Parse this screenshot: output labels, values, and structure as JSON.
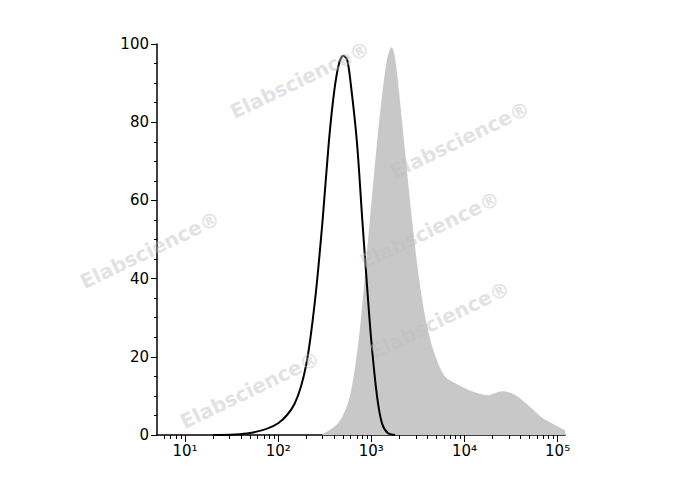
{
  "chart_data": {
    "type": "line",
    "annotations": [
      "Elabscience®"
    ],
    "log": "x",
    "grid": false,
    "xlim": [
      5,
      120000
    ],
    "xticks": [
      {
        "value": 10,
        "label": "10¹"
      },
      {
        "value": 100,
        "label": "10²"
      },
      {
        "value": 1000,
        "label": "10³"
      },
      {
        "value": 10000,
        "label": "10⁴"
      },
      {
        "value": 100000,
        "label": "10⁵"
      }
    ],
    "ylim": [
      0,
      100
    ],
    "yticks": [
      0,
      20,
      40,
      60,
      80,
      100
    ],
    "series": [
      {
        "type": "area",
        "color": "#c8c8c8",
        "x": [
          300,
          450,
          600,
          750,
          900,
          1100,
          1300,
          1500,
          1650,
          1800,
          2100,
          2500,
          3000,
          3600,
          4500,
          6000,
          8000,
          12000,
          18000,
          25000,
          35000,
          50000,
          70000,
          100000,
          120000
        ],
        "values": [
          0,
          3,
          10,
          25,
          45,
          68,
          85,
          96,
          99,
          95,
          80,
          62,
          45,
          32,
          22,
          15,
          13,
          11,
          10,
          11,
          10,
          7,
          4,
          2,
          1
        ]
      },
      {
        "type": "line",
        "color": "#000000",
        "x": [
          20,
          50,
          100,
          150,
          200,
          250,
          300,
          350,
          400,
          450,
          500,
          550,
          600,
          700,
          800,
          900,
          1000,
          1150,
          1300,
          1500,
          1800
        ],
        "values": [
          0,
          0.5,
          3,
          8,
          18,
          35,
          55,
          75,
          88,
          95,
          97,
          96,
          90,
          75,
          55,
          38,
          24,
          10,
          3,
          0.5,
          0
        ]
      }
    ]
  }
}
